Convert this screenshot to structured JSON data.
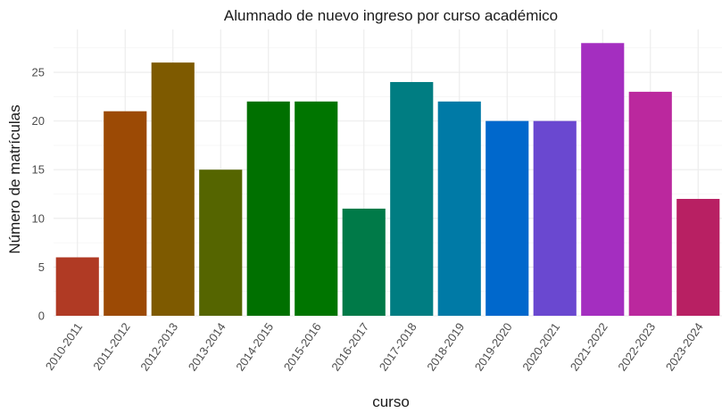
{
  "chart_data": {
    "type": "bar",
    "title": "Alumnado de nuevo ingreso por curso académico",
    "xlabel": "curso",
    "ylabel": "Número de matrículas",
    "categories": [
      "2010-2011",
      "2011-2012",
      "2012-2013",
      "2013-2014",
      "2014-2015",
      "2015-2016",
      "2016-2017",
      "2017-2018",
      "2018-2019",
      "2019-2020",
      "2020-2021",
      "2021-2022",
      "2022-2023",
      "2023-2024"
    ],
    "values": [
      6,
      21,
      26,
      15,
      22,
      22,
      11,
      24,
      22,
      20,
      20,
      28,
      23,
      12
    ],
    "colors": [
      "#b03a24",
      "#9c4a05",
      "#7e5a00",
      "#556500",
      "#007000",
      "#007500",
      "#007a48",
      "#007d82",
      "#007aa6",
      "#0068cc",
      "#6a48d0",
      "#a42ec0",
      "#bb289e",
      "#b82063"
    ],
    "ylim": [
      0,
      29.4
    ],
    "yticks": [
      0,
      5,
      10,
      15,
      20,
      25
    ],
    "grid": true,
    "legend": "none"
  }
}
